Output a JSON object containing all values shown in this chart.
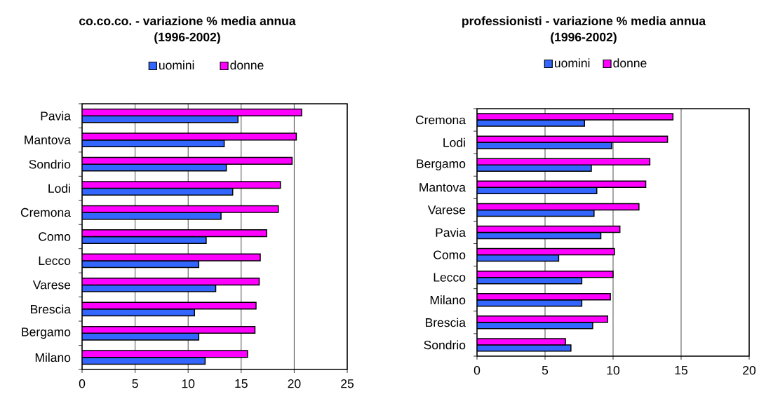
{
  "chart_data": [
    {
      "type": "bar",
      "orientation": "horizontal",
      "title": "co.co.co. - variazione % media annua (1996-2002)",
      "categories": [
        "Pavia",
        "Mantova",
        "Sondrio",
        "Lodi",
        "Cremona",
        "Como",
        "Lecco",
        "Varese",
        "Brescia",
        "Bergamo",
        "Milano"
      ],
      "series": [
        {
          "name": "uomini",
          "color": "#3366ff",
          "values": [
            14.7,
            13.4,
            13.6,
            14.2,
            13.1,
            11.7,
            11.0,
            12.6,
            10.6,
            11.0,
            11.6
          ]
        },
        {
          "name": "donne",
          "color": "#ff00ff",
          "values": [
            20.7,
            20.2,
            19.8,
            18.7,
            18.5,
            17.4,
            16.8,
            16.7,
            16.4,
            16.3,
            15.6
          ]
        }
      ],
      "xlim": [
        0,
        25
      ],
      "xticks": [
        0,
        5,
        10,
        15,
        20,
        25
      ],
      "grid": "x",
      "legend": "top"
    },
    {
      "type": "bar",
      "orientation": "horizontal",
      "title": "professionisti - variazione % media annua (1996-2002)",
      "categories": [
        "Cremona",
        "Lodi",
        "Bergamo",
        "Mantova",
        "Varese",
        "Pavia",
        "Como",
        "Lecco",
        "Milano",
        "Brescia",
        "Sondrio"
      ],
      "series": [
        {
          "name": "uomini",
          "color": "#3366ff",
          "values": [
            7.9,
            9.9,
            8.4,
            8.8,
            8.6,
            9.1,
            6.0,
            7.7,
            7.7,
            8.5,
            6.9
          ]
        },
        {
          "name": "donne",
          "color": "#ff00ff",
          "values": [
            14.4,
            14.0,
            12.7,
            12.4,
            11.9,
            10.5,
            10.1,
            10.0,
            9.8,
            9.6,
            6.5
          ]
        }
      ],
      "xlim": [
        0,
        20
      ],
      "xticks": [
        0,
        5,
        10,
        15,
        20
      ],
      "grid": "x",
      "legend": "top"
    }
  ]
}
